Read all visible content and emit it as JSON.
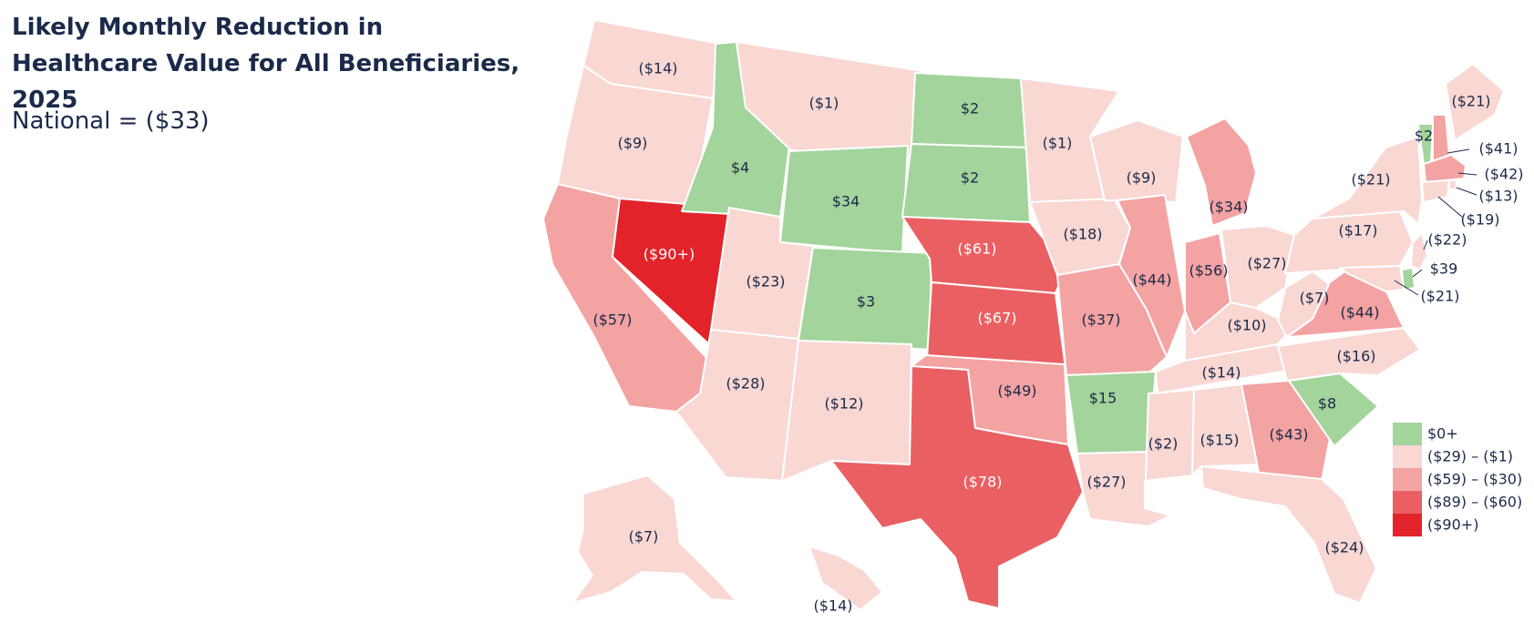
{
  "title": "Likely Monthly Reduction in Healthcare Value for All Beneficiaries, 2025",
  "national": "National = ($33)",
  "colors": {
    "gain": "#a3d49b",
    "low": "#f9d7d3",
    "mid": "#f3a3a2",
    "high": "#ea5f62",
    "top": "#e2232a",
    "label_dark": "#1b2a4a",
    "label_light": "#ffffff"
  },
  "legend": [
    {
      "key": "gain",
      "label": "$0+"
    },
    {
      "key": "low",
      "label": "($29) – ($1)"
    },
    {
      "key": "mid",
      "label": "($59) – ($30)"
    },
    {
      "key": "high",
      "label": "($89) – ($60)"
    },
    {
      "key": "top",
      "label": "($90+)"
    }
  ],
  "states": {
    "WA": {
      "value": "($14)",
      "cat": "low"
    },
    "OR": {
      "value": "($9)",
      "cat": "low"
    },
    "CA": {
      "value": "($57)",
      "cat": "mid"
    },
    "NV": {
      "value": "($90+)",
      "cat": "top"
    },
    "ID": {
      "value": "$4",
      "cat": "gain"
    },
    "MT": {
      "value": "($1)",
      "cat": "low"
    },
    "WY": {
      "value": "$34",
      "cat": "gain"
    },
    "UT": {
      "value": "($23)",
      "cat": "low"
    },
    "AZ": {
      "value": "($28)",
      "cat": "low"
    },
    "CO": {
      "value": "$3",
      "cat": "gain"
    },
    "NM": {
      "value": "($12)",
      "cat": "low"
    },
    "ND": {
      "value": "$2",
      "cat": "gain"
    },
    "SD": {
      "value": "$2",
      "cat": "gain"
    },
    "NE": {
      "value": "($61)",
      "cat": "high"
    },
    "KS": {
      "value": "($67)",
      "cat": "high"
    },
    "OK": {
      "value": "($49)",
      "cat": "mid"
    },
    "TX": {
      "value": "($78)",
      "cat": "high"
    },
    "MN": {
      "value": "($1)",
      "cat": "low"
    },
    "IA": {
      "value": "($18)",
      "cat": "low"
    },
    "MO": {
      "value": "($37)",
      "cat": "mid"
    },
    "AR": {
      "value": "$15",
      "cat": "gain"
    },
    "LA": {
      "value": "($27)",
      "cat": "low"
    },
    "WI": {
      "value": "($9)",
      "cat": "low"
    },
    "IL": {
      "value": "($44)",
      "cat": "mid"
    },
    "MI": {
      "value": "($34)",
      "cat": "mid"
    },
    "IN": {
      "value": "($56)",
      "cat": "mid"
    },
    "OH": {
      "value": "($27)",
      "cat": "low"
    },
    "KY": {
      "value": "($10)",
      "cat": "low"
    },
    "TN": {
      "value": "($14)",
      "cat": "low"
    },
    "MS": {
      "value": "($2)",
      "cat": "low"
    },
    "AL": {
      "value": "($15)",
      "cat": "low"
    },
    "GA": {
      "value": "($43)",
      "cat": "mid"
    },
    "FL": {
      "value": "($24)",
      "cat": "low"
    },
    "SC": {
      "value": "$8",
      "cat": "gain"
    },
    "NC": {
      "value": "($16)",
      "cat": "low"
    },
    "VA": {
      "value": "($44)",
      "cat": "mid"
    },
    "WV": {
      "value": "($7)",
      "cat": "low"
    },
    "PA": {
      "value": "($17)",
      "cat": "low"
    },
    "NY": {
      "value": "($21)",
      "cat": "low"
    },
    "ME": {
      "value": "($21)",
      "cat": "low"
    },
    "VT": {
      "value": "$2",
      "cat": "gain"
    },
    "NH": {
      "value": "($41)",
      "cat": "mid"
    },
    "MA": {
      "value": "($42)",
      "cat": "mid"
    },
    "RI": {
      "value": "($13)",
      "cat": "low"
    },
    "CT": {
      "value": "($19)",
      "cat": "low"
    },
    "NJ": {
      "value": "($22)",
      "cat": "low"
    },
    "DE": {
      "value": "$39",
      "cat": "gain"
    },
    "MD": {
      "value": "($21)",
      "cat": "low"
    },
    "AK": {
      "value": "($7)",
      "cat": "low"
    },
    "HI": {
      "value": "($14)",
      "cat": "low"
    }
  }
}
